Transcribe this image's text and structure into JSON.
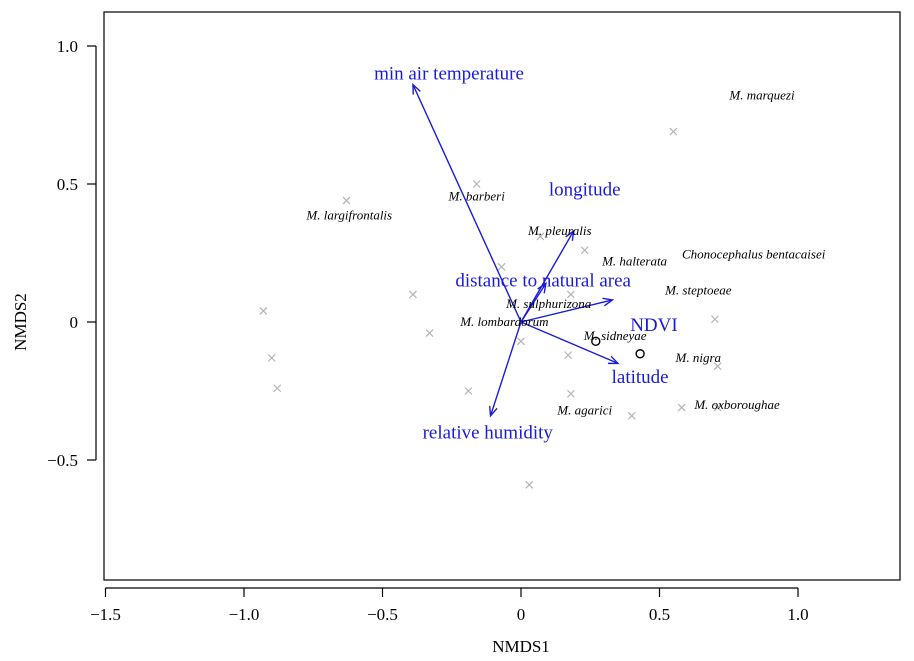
{
  "chart_data": {
    "type": "scatter",
    "xlabel": "NMDS1",
    "ylabel": "NMDS2",
    "xlim": [
      -1.5,
      1.4
    ],
    "ylim": [
      -0.92,
      1.12
    ],
    "xticks": [
      -1.5,
      -1.0,
      -0.5,
      0,
      0.5,
      1.0
    ],
    "xtick_labels": [
      "−1.5",
      "−1.0",
      "−0.5",
      "0",
      "0.5",
      "1.0"
    ],
    "yticks": [
      -0.5,
      0,
      0.5,
      1.0
    ],
    "ytick_labels": [
      "−0.5",
      "0",
      "0.5",
      "1.0"
    ],
    "grid": false,
    "colors": {
      "vector": "#1a1adb",
      "site_marker": "#b3b3b3",
      "species_text": "#000000"
    },
    "site_points": [
      {
        "x": 0.55,
        "y": 0.69
      },
      {
        "x": -0.16,
        "y": 0.5
      },
      {
        "x": -0.63,
        "y": 0.44
      },
      {
        "x": 0.07,
        "y": 0.31
      },
      {
        "x": 0.23,
        "y": 0.26
      },
      {
        "x": -0.07,
        "y": 0.2
      },
      {
        "x": -0.39,
        "y": 0.1
      },
      {
        "x": 0.18,
        "y": 0.1
      },
      {
        "x": -0.93,
        "y": 0.04
      },
      {
        "x": 0.7,
        "y": 0.01
      },
      {
        "x": -0.33,
        "y": -0.04
      },
      {
        "x": 0.0,
        "y": -0.07
      },
      {
        "x": -0.9,
        "y": -0.13
      },
      {
        "x": 0.17,
        "y": -0.12
      },
      {
        "x": 0.71,
        "y": -0.16
      },
      {
        "x": -0.88,
        "y": -0.24
      },
      {
        "x": -0.19,
        "y": -0.25
      },
      {
        "x": 0.18,
        "y": -0.26
      },
      {
        "x": 0.58,
        "y": -0.31
      },
      {
        "x": 0.71,
        "y": -0.31
      },
      {
        "x": 0.4,
        "y": -0.34
      },
      {
        "x": 0.03,
        "y": -0.59
      }
    ],
    "centroid_points": [
      {
        "x": 0.27,
        "y": -0.07
      },
      {
        "x": 0.43,
        "y": -0.115
      }
    ],
    "species_labels": [
      {
        "label": "M. marquezi",
        "x": 0.87,
        "y": 0.82
      },
      {
        "label": "M. barberi",
        "x": -0.16,
        "y": 0.455
      },
      {
        "label": "M. largifrontalis",
        "x": -0.62,
        "y": 0.385
      },
      {
        "label": "M. pleuralis",
        "x": 0.14,
        "y": 0.33
      },
      {
        "label": "M. halterata",
        "x": 0.41,
        "y": 0.22
      },
      {
        "label": "Chonocephalus bentacaisei",
        "x": 0.84,
        "y": 0.245
      },
      {
        "label": "M. steptoeae",
        "x": 0.64,
        "y": 0.115
      },
      {
        "label": "M. sulphurizona",
        "x": 0.1,
        "y": 0.065
      },
      {
        "label": "M. lombardorum",
        "x": -0.06,
        "y": 0.0
      },
      {
        "label": "M. sidneyae",
        "x": 0.34,
        "y": -0.05
      },
      {
        "label": "M. nigra",
        "x": 0.64,
        "y": -0.13
      },
      {
        "label": "M. oxboroughae",
        "x": 0.78,
        "y": -0.3
      },
      {
        "label": "M. agarici",
        "x": 0.23,
        "y": -0.32
      }
    ],
    "env_vectors": [
      {
        "label": "min air temperature",
        "x": -0.39,
        "y": 0.86,
        "label_x": -0.26,
        "label_y": 0.9,
        "label_size": 19
      },
      {
        "label": "longitude",
        "x": 0.19,
        "y": 0.33,
        "label_x": 0.23,
        "label_y": 0.48,
        "label_size": 19
      },
      {
        "label": "distance to natural area",
        "x": 0.09,
        "y": 0.14,
        "label_x": 0.08,
        "label_y": 0.15,
        "label_size": 19
      },
      {
        "label": "NDVI",
        "x": 0.33,
        "y": 0.08,
        "label_x": 0.48,
        "label_y": -0.01,
        "label_size": 21
      },
      {
        "label": "latitude",
        "x": 0.35,
        "y": -0.15,
        "label_x": 0.43,
        "label_y": -0.2,
        "label_size": 19
      },
      {
        "label": "relative humidity",
        "x": -0.11,
        "y": -0.34,
        "label_x": -0.12,
        "label_y": -0.4,
        "label_size": 19
      }
    ]
  }
}
